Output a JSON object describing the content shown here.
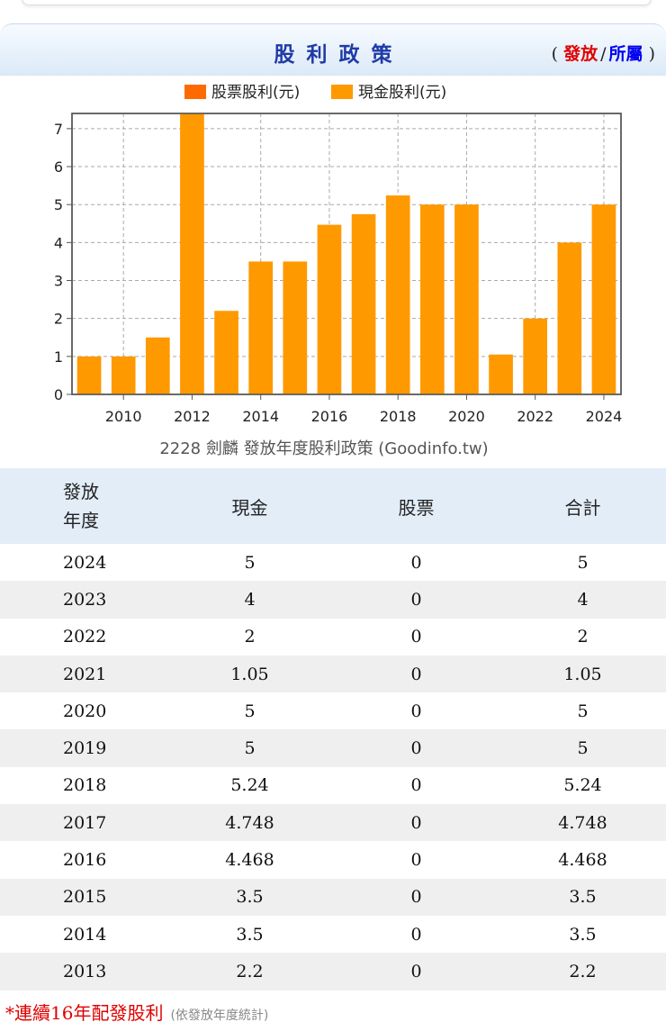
{
  "header": {
    "title": "股利政策",
    "paren_open": "(",
    "paren_close": ")",
    "link_release": "發放",
    "link_separator": "/",
    "link_belong": "所屬"
  },
  "chart_data": {
    "type": "bar",
    "title": "",
    "caption": "2228 劍麟 發放年度股利政策 (Goodinfo.tw)",
    "legend": [
      "股票股利(元)",
      "現金股利(元)"
    ],
    "legend_position": "top-center",
    "grid": true,
    "ylim": [
      0,
      7.4
    ],
    "y_ticks": [
      "0",
      "1",
      "2",
      "3",
      "4",
      "5",
      "6",
      "7"
    ],
    "x_tick_labels": [
      "2010",
      "2012",
      "2014",
      "2016",
      "2018",
      "2020",
      "2022",
      "2024"
    ],
    "categories": [
      "2009",
      "2010",
      "2011",
      "2012",
      "2013",
      "2014",
      "2015",
      "2016",
      "2017",
      "2018",
      "2019",
      "2020",
      "2021",
      "2022",
      "2023",
      "2024"
    ],
    "series": [
      {
        "name": "股票股利(元)",
        "color": "#ff6a00",
        "values": [
          0,
          0,
          0,
          0,
          0,
          0,
          0,
          0,
          0,
          0,
          0,
          0,
          0,
          0,
          0,
          0
        ]
      },
      {
        "name": "現金股利(元)",
        "color": "#ff9900",
        "values": [
          1,
          1,
          1.5,
          7.4,
          2.2,
          3.5,
          3.5,
          4.468,
          4.748,
          5.24,
          5,
          5,
          1.05,
          2,
          4,
          5
        ]
      }
    ]
  },
  "table": {
    "headers": [
      "發放",
      "年度",
      "現金",
      "股票",
      "合計"
    ],
    "rows": [
      [
        "2024",
        "5",
        "0",
        "5"
      ],
      [
        "2023",
        "4",
        "0",
        "4"
      ],
      [
        "2022",
        "2",
        "0",
        "2"
      ],
      [
        "2021",
        "1.05",
        "0",
        "1.05"
      ],
      [
        "2020",
        "5",
        "0",
        "5"
      ],
      [
        "2019",
        "5",
        "0",
        "5"
      ],
      [
        "2018",
        "5.24",
        "0",
        "5.24"
      ],
      [
        "2017",
        "4.748",
        "0",
        "4.748"
      ],
      [
        "2016",
        "4.468",
        "0",
        "4.468"
      ],
      [
        "2015",
        "3.5",
        "0",
        "3.5"
      ],
      [
        "2014",
        "3.5",
        "0",
        "3.5"
      ],
      [
        "2013",
        "2.2",
        "0",
        "2.2"
      ]
    ]
  },
  "footnote": {
    "main": "*連續16年配發股利",
    "sub": "(依發放年度統計)"
  }
}
